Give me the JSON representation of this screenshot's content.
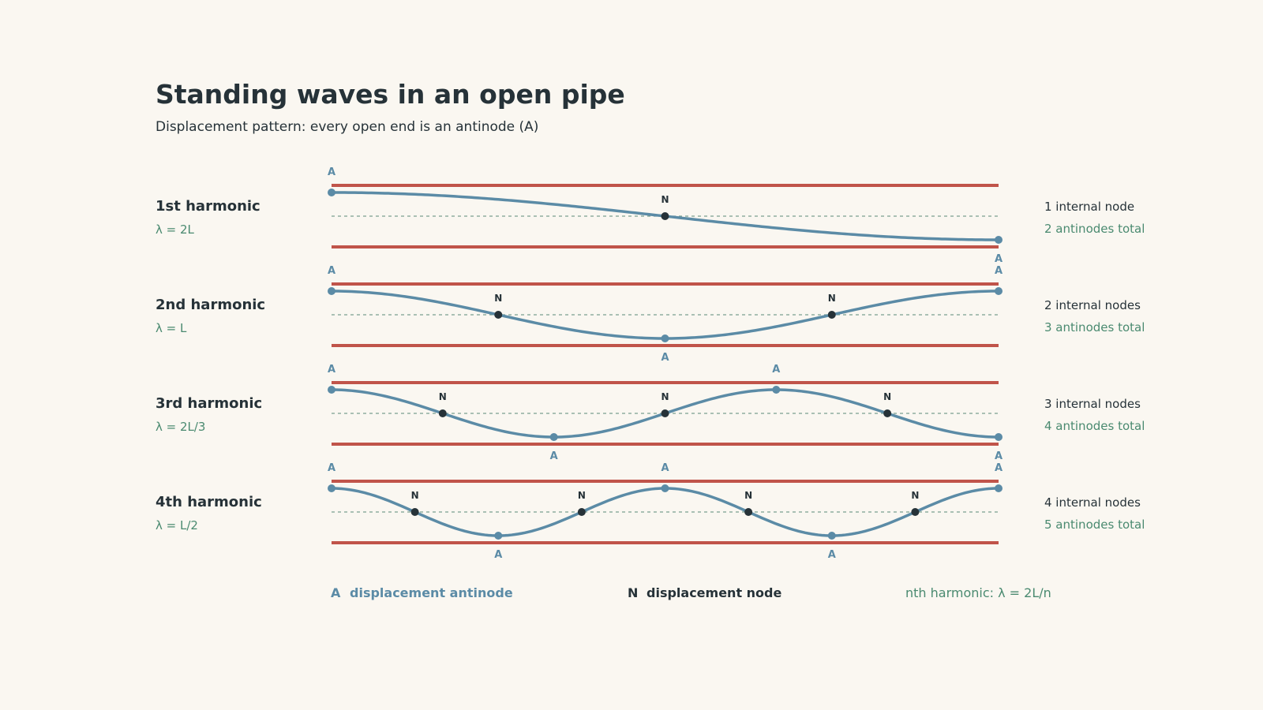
{
  "title": "Standing waves in an open pipe",
  "subtitle": "Displacement pattern: every open end is an antinode (A)",
  "colors": {
    "background": "#faf7f1",
    "pipe_wall": "#c0544a",
    "wave": "#5b8ba6",
    "node": "#263238",
    "axis": "#7a9e8f",
    "accent_text": "#4a8a70",
    "dark_text": "#263238"
  },
  "harmonics": [
    {
      "n": 1,
      "name": "1st harmonic",
      "wavelength": "λ = 2L",
      "internal_nodes": "1 internal node",
      "antinodes_total": "2 antinodes total"
    },
    {
      "n": 2,
      "name": "2nd harmonic",
      "wavelength": "λ = L",
      "internal_nodes": "2 internal nodes",
      "antinodes_total": "3 antinodes total"
    },
    {
      "n": 3,
      "name": "3rd harmonic",
      "wavelength": "λ = 2L/3",
      "internal_nodes": "3 internal nodes",
      "antinodes_total": "4 antinodes total"
    },
    {
      "n": 4,
      "name": "4th harmonic",
      "wavelength": "λ = L/2",
      "internal_nodes": "4 internal nodes",
      "antinodes_total": "5 antinodes total"
    }
  ],
  "marker_labels": {
    "antinode": "A",
    "node": "N"
  },
  "legend": {
    "antinode_symbol": "A",
    "antinode_text": "displacement antinode",
    "node_symbol": "N",
    "node_text": "displacement node",
    "formula": "nth harmonic:  λ = 2L/n"
  }
}
